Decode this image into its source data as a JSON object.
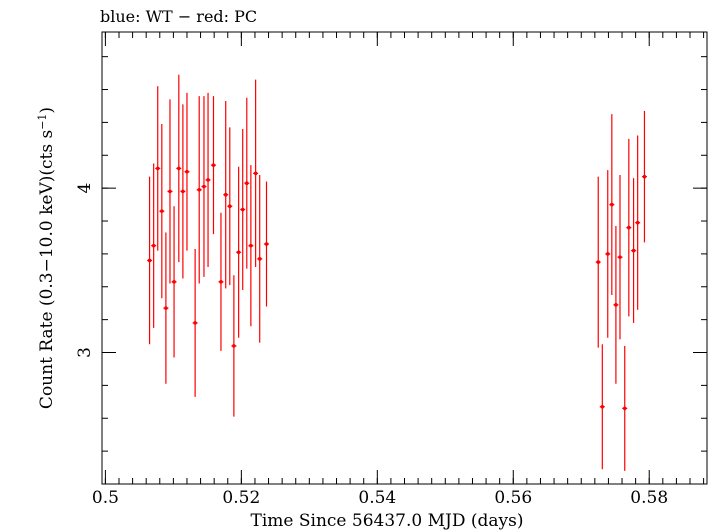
{
  "chart_data": {
    "type": "scatter",
    "title": "blue: WT − red: PC",
    "xlabel": "Time Since 56437.0 MJD (days)",
    "ylabel_main": "Count Rate (0.3−10.0 keV)(cts s",
    "ylabel_sup": "−1",
    "ylabel_close": ")",
    "xlim": [
      0.4995,
      0.5885
    ],
    "ylim": [
      2.2,
      4.95
    ],
    "x_ticks": [
      0.5,
      0.52,
      0.54,
      0.56,
      0.58
    ],
    "x_tick_labels": [
      "0.5",
      "0.52",
      "0.54",
      "0.56",
      "0.58"
    ],
    "y_ticks": [
      3,
      4
    ],
    "y_tick_labels": [
      "3",
      "4"
    ],
    "x_minor_step": 0.002,
    "y_minor_step": 0.2,
    "grid": false,
    "legend": "none",
    "colors": {
      "pc": "#ff0000",
      "axis": "#000000"
    },
    "series": [
      {
        "points": [
          {
            "x": 0.5065,
            "y": 3.56,
            "yerr": 0.51
          },
          {
            "x": 0.5071,
            "y": 3.65,
            "yerr": 0.5
          },
          {
            "x": 0.5077,
            "y": 4.12,
            "yerr": 0.5
          },
          {
            "x": 0.5083,
            "y": 3.86,
            "yerr": 0.53
          },
          {
            "x": 0.5089,
            "y": 3.27,
            "yerr": 0.46
          },
          {
            "x": 0.5095,
            "y": 3.98,
            "yerr": 0.56
          },
          {
            "x": 0.5101,
            "y": 3.43,
            "yerr": 0.46
          },
          {
            "x": 0.5108,
            "y": 4.12,
            "yerr": 0.57
          },
          {
            "x": 0.5114,
            "y": 3.98,
            "yerr": 0.53
          },
          {
            "x": 0.512,
            "y": 4.1,
            "yerr": 0.48
          },
          {
            "x": 0.5132,
            "y": 3.18,
            "yerr": 0.45
          },
          {
            "x": 0.5138,
            "y": 3.99,
            "yerr": 0.57
          },
          {
            "x": 0.5145,
            "y": 4.01,
            "yerr": 0.55
          },
          {
            "x": 0.5151,
            "y": 4.05,
            "yerr": 0.53
          },
          {
            "x": 0.5159,
            "y": 4.14,
            "yerr": 0.42
          },
          {
            "x": 0.517,
            "y": 3.43,
            "yerr": 0.42
          },
          {
            "x": 0.5177,
            "y": 3.96,
            "yerr": 0.57
          },
          {
            "x": 0.5183,
            "y": 3.89,
            "yerr": 0.48
          },
          {
            "x": 0.5189,
            "y": 3.04,
            "yerr": 0.43
          },
          {
            "x": 0.5196,
            "y": 3.61,
            "yerr": 0.52
          },
          {
            "x": 0.5202,
            "y": 3.87,
            "yerr": 0.49
          },
          {
            "x": 0.5208,
            "y": 4.03,
            "yerr": 0.52
          },
          {
            "x": 0.5214,
            "y": 3.65,
            "yerr": 0.49
          },
          {
            "x": 0.5221,
            "y": 4.09,
            "yerr": 0.57
          },
          {
            "x": 0.5227,
            "y": 3.57,
            "yerr": 0.51
          },
          {
            "x": 0.5237,
            "y": 3.66,
            "yerr": 0.38
          },
          {
            "x": 0.5725,
            "y": 3.55,
            "yerr": 0.52
          },
          {
            "x": 0.5731,
            "y": 2.67,
            "yerr": 0.38
          },
          {
            "x": 0.5739,
            "y": 3.6,
            "yerr": 0.51
          },
          {
            "x": 0.5745,
            "y": 3.9,
            "yerr": 0.55
          },
          {
            "x": 0.5751,
            "y": 3.29,
            "yerr": 0.48
          },
          {
            "x": 0.5757,
            "y": 3.58,
            "yerr": 0.5
          },
          {
            "x": 0.5764,
            "y": 2.66,
            "yerr": 0.38
          },
          {
            "x": 0.577,
            "y": 3.76,
            "yerr": 0.54
          },
          {
            "x": 0.5777,
            "y": 3.62,
            "yerr": 0.44
          },
          {
            "x": 0.5783,
            "y": 3.79,
            "yerr": 0.53
          },
          {
            "x": 0.5793,
            "y": 4.07,
            "yerr": 0.4
          }
        ]
      }
    ]
  }
}
